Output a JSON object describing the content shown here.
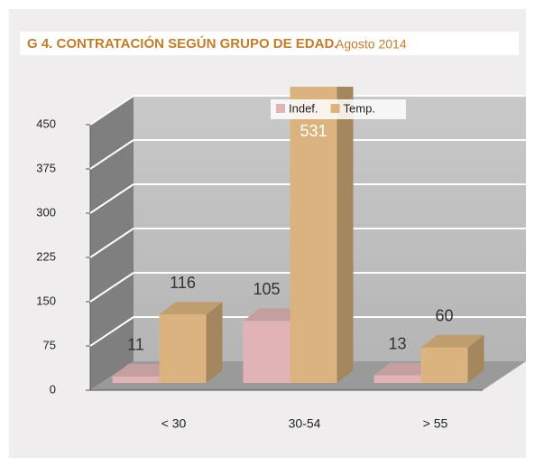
{
  "chart_data": {
    "type": "bar3d",
    "title": "G 4. CONTRATACIÓN  SEGÚN GRUPO DE EDAD.",
    "subtitle": "Agosto 2014",
    "categories": [
      "< 30",
      "30-54",
      "> 55"
    ],
    "series": [
      {
        "name": "Indef.",
        "color": "#e0b4b6",
        "values": [
          11,
          105,
          13
        ]
      },
      {
        "name": "Temp.",
        "color": "#dab37e",
        "values": [
          116,
          531,
          60
        ]
      }
    ],
    "ylim": [
      0,
      450
    ],
    "yticks": [
      0,
      75,
      150,
      225,
      300,
      375,
      450
    ],
    "grid": true,
    "legend": "top"
  }
}
